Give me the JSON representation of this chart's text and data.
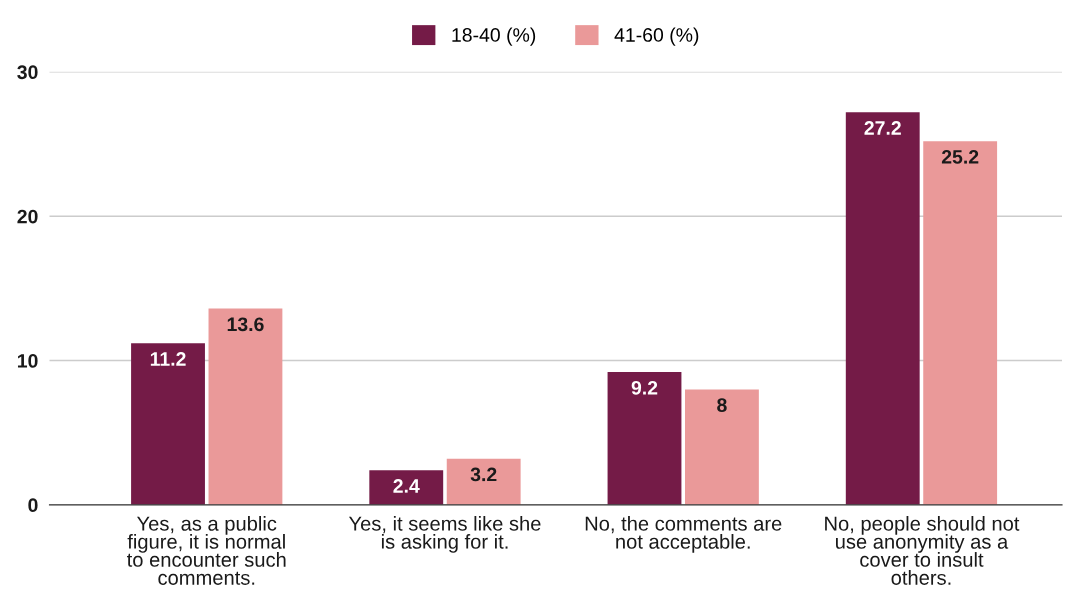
{
  "chart_data": {
    "type": "bar",
    "categories": [
      "Yes, as a public figure, it is normal to encounter such comments.",
      "Yes, it seems like she is asking for it.",
      "No, the comments are not acceptable.",
      "No, people should not use anonymity as a cover to insult others."
    ],
    "series": [
      {
        "name": "18-40 (%)",
        "color": "#741b47",
        "values": [
          11.2,
          2.4,
          9.2,
          27.2
        ]
      },
      {
        "name": "41-60 (%)",
        "color": "#ea9999",
        "values": [
          13.6,
          3.2,
          8,
          25.2
        ]
      }
    ],
    "ylim": [
      0,
      30
    ],
    "yticks": [
      0,
      10,
      20,
      30
    ],
    "grid": "y",
    "legend": "top",
    "data_labels": true
  }
}
